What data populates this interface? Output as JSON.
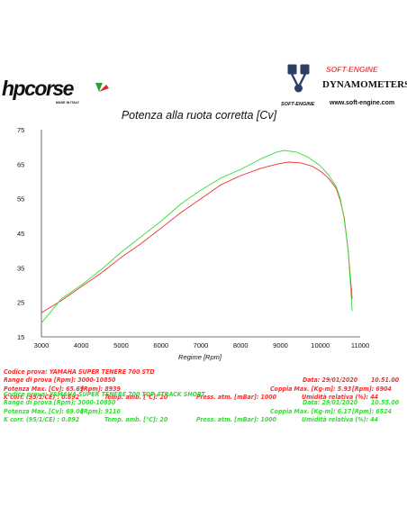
{
  "logos": {
    "left": {
      "text": "hpcorse",
      "tagline": "MADE IN ITALY"
    },
    "right": {
      "brand": "SOFT-ENGINE",
      "product": "DYNAMOMETERS",
      "small": "SOFT-ENGINE",
      "url": "www.soft-engine.com"
    }
  },
  "chart_data": {
    "type": "line",
    "title": "Potenza alla ruota corretta [Cv]",
    "xlabel": "Regime [Rpm]",
    "ylabel": "",
    "xlim": [
      3000,
      11000
    ],
    "ylim": [
      15,
      75
    ],
    "xticks": [
      3000,
      4000,
      5000,
      6000,
      7000,
      8000,
      9000,
      10000,
      11000
    ],
    "yticks": [
      15,
      25,
      35,
      45,
      55,
      65,
      75
    ],
    "grid": false,
    "series": [
      {
        "color": "#e8332f",
        "x": [
          3000,
          3500,
          4000,
          4500,
          5000,
          5500,
          6000,
          6500,
          7000,
          7500,
          8000,
          8500,
          8900,
          9200,
          9500,
          9800,
          10000,
          10200,
          10400,
          10500,
          10600,
          10700,
          10800
        ],
        "y": [
          22.0,
          25.5,
          29.5,
          33.5,
          38.0,
          42.0,
          46.5,
          51.0,
          55.0,
          59.0,
          61.7,
          63.8,
          65.0,
          65.6,
          65.4,
          64.4,
          63.0,
          61.0,
          58.0,
          54.5,
          49.5,
          40.0,
          26.0
        ]
      },
      {
        "color": "#34dd34",
        "x": [
          3000,
          3500,
          4000,
          4500,
          5000,
          5500,
          6000,
          6500,
          7000,
          7500,
          8000,
          8500,
          8900,
          9100,
          9400,
          9700,
          10000,
          10200,
          10400,
          10500,
          10600,
          10700,
          10800
        ],
        "y": [
          19.0,
          26.0,
          30.0,
          34.5,
          39.5,
          44.0,
          48.5,
          53.5,
          57.5,
          61.0,
          63.5,
          66.5,
          68.5,
          69.0,
          68.5,
          67.0,
          64.5,
          62.0,
          58.5,
          55.0,
          49.0,
          40.0,
          22.5
        ]
      }
    ]
  },
  "tests": [
    {
      "color": "#ff2a2a",
      "codice": "Codice prova: YAMAHA SUPER TENERE 700 STD",
      "range": "Range di prova [Rpm]: 3000-10850",
      "data": "Data: 29/01/2020",
      "ora": "10.51.00",
      "potenza": "Potenza Max. [Cv]: 65.69",
      "potenza_rpm": "[Rpm]: 8939",
      "coppia": "Coppia Max. [Kg-m]: 5.93",
      "coppia_rpm": "[Rpm]: 6904",
      "kcorr": "K corr. (95/1/CE) : 0.892",
      "temp": "Temp. amb. [°C]: 20",
      "press": "Press. atm. [mBar]: 1000",
      "umid": "Umidità relativa (%): 44"
    },
    {
      "color": "#33dd33",
      "codice": "Codice prova: YAMAHA SUPER TENERE 700 TOP 4TRACK SHORT",
      "range": "Range di prova [Rpm]: 3000-10850",
      "data": "Data: 29/01/2020",
      "ora": "10.55.00",
      "potenza": "Potenza Max. [Cv]: 69.08",
      "potenza_rpm": "[Rpm]: 9110",
      "coppia": "Coppia Max. [Kg-m]: 6.17",
      "coppia_rpm": "[Rpm]: 6524",
      "kcorr": "K corr. (95/1/CE) : 0.892",
      "temp": "Temp. amb. [°C]: 20",
      "press": "Press. atm. [mBar]: 1000",
      "umid": "Umidità relativa (%): 44"
    }
  ]
}
